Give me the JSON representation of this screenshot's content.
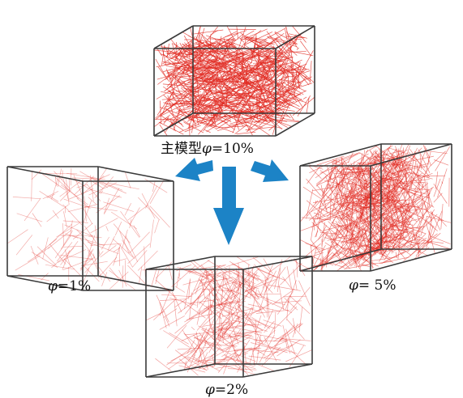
{
  "captions": {
    "main": {
      "prefix": "主模型",
      "phi": "φ",
      "value": "=10%"
    },
    "phi1": {
      "phi": "φ",
      "value": "=1%"
    },
    "phi5": {
      "phi": "φ",
      "value": "= 5%"
    },
    "phi2": {
      "phi": "φ",
      "value": "=2%"
    }
  },
  "colors": {
    "fiber": "#e12a22",
    "box_edge": "#3a3a3a",
    "arrow": "#1c83c6"
  },
  "fiber_density": {
    "main": 1.0,
    "phi1": 0.1,
    "phi2": 0.2,
    "phi5": 0.5
  }
}
